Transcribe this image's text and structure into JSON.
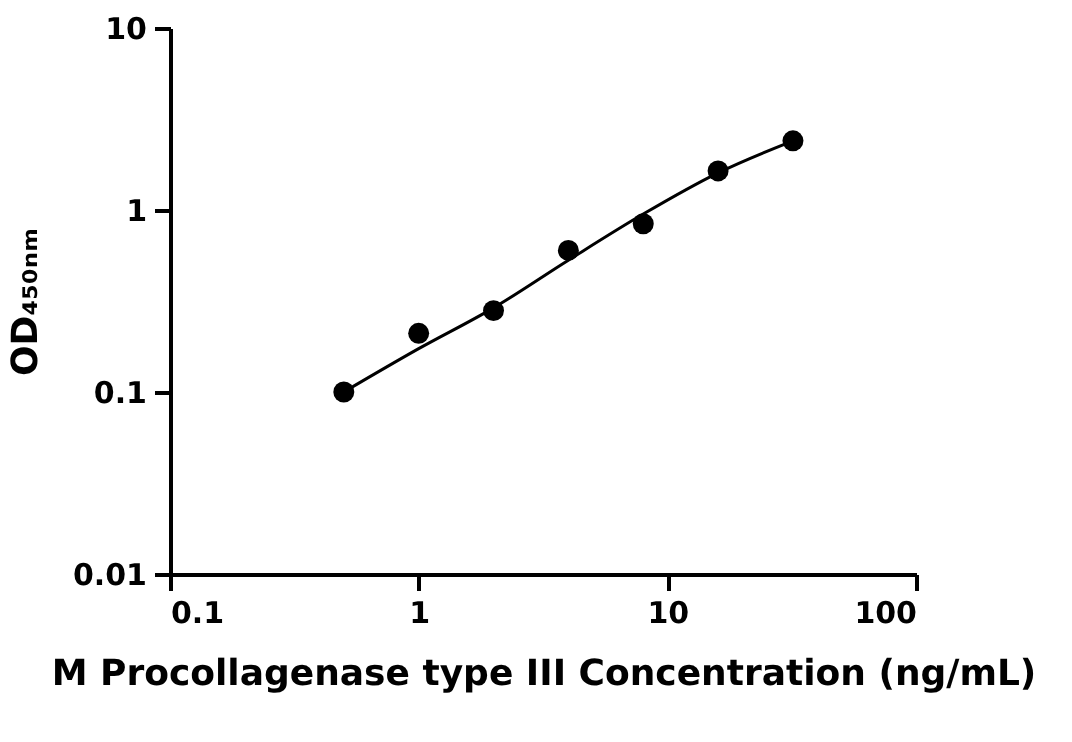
{
  "chart_data": {
    "type": "scatter",
    "xlabel": "M Procollagenase type III Concentration (ng/mL)",
    "ylabel": "OD₄₅₀ₙₘ",
    "log": "xy",
    "xlim": [
      0.1,
      100
    ],
    "xticks": [
      0.1,
      1,
      10,
      100
    ],
    "ylim": [
      0.01,
      10
    ],
    "yticks": [
      0.01,
      0.1,
      1,
      10
    ],
    "series": [
      {
        "marker": "circle",
        "color": "#000000",
        "x": [
          0.5,
          1,
          2,
          4,
          8,
          16,
          32
        ],
        "values": [
          0.1,
          0.21,
          0.28,
          0.6,
          0.84,
          1.64,
          2.4
        ]
      },
      {
        "type": "line",
        "marker": "none",
        "color": "#000000",
        "x": [
          0.5,
          1,
          2,
          4,
          8,
          16,
          32
        ],
        "values": [
          0.1,
          0.173,
          0.29,
          0.53,
          0.95,
          1.6,
          2.4
        ]
      }
    ]
  }
}
